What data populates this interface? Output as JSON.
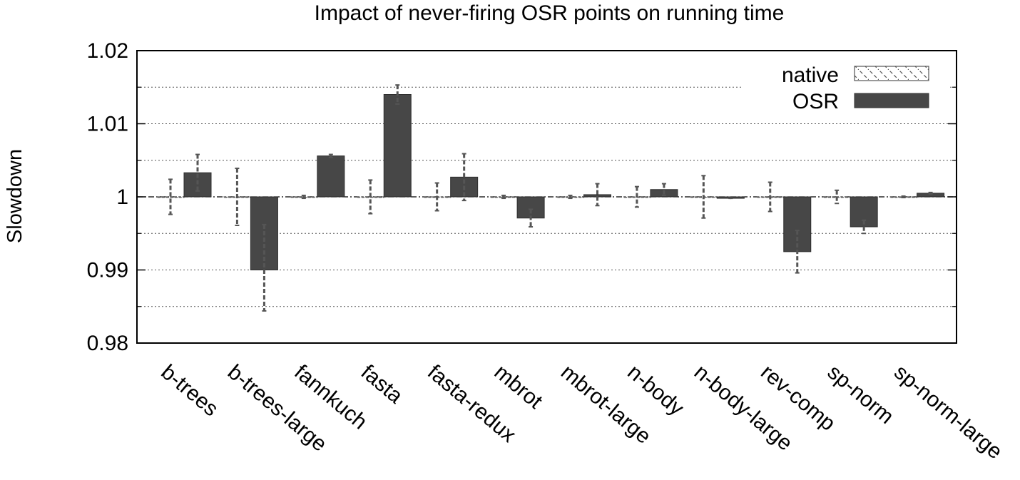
{
  "chart_data": {
    "type": "bar",
    "title": "Impact of never-firing OSR points on running time",
    "xlabel": "",
    "ylabel": "Slowdown",
    "ylim": [
      0.98,
      1.02
    ],
    "yticks": [
      "0.98",
      "0.99",
      "1",
      "1.01",
      "1.02"
    ],
    "grid": true,
    "legend_position": "top-right",
    "categories": [
      "b-trees",
      "b-trees-large",
      "fannkuch",
      "fasta",
      "fasta-redux",
      "mbrot",
      "mbrot-large",
      "n-body",
      "n-body-large",
      "rev-comp",
      "sp-norm",
      "sp-norm-large"
    ],
    "series": [
      {
        "name": "native",
        "pattern": "hatched",
        "color": "#555555",
        "values": [
          1,
          1,
          1,
          1,
          1,
          1,
          1,
          1,
          1,
          1,
          1,
          1
        ],
        "error_low": [
          0.9976,
          0.9961,
          0.9998,
          0.9977,
          0.9981,
          0.9998,
          0.9998,
          0.9986,
          0.9971,
          0.998,
          0.9991,
          0.9999
        ],
        "error_high": [
          1.0024,
          1.0039,
          1.0002,
          1.0023,
          1.0019,
          1.0002,
          1.0002,
          1.0014,
          1.0029,
          1.002,
          1.0009,
          1.0001
        ]
      },
      {
        "name": "OSR",
        "pattern": "solid",
        "color": "#474747",
        "values": [
          1.0033,
          0.99,
          1.0056,
          1.014,
          1.0027,
          0.9971,
          1.0003,
          1.001,
          0.9998,
          0.9925,
          0.9959,
          1.0005
        ],
        "error_low": [
          1.0008,
          0.9844,
          1.0054,
          1.0127,
          0.9995,
          0.9959,
          0.9988,
          1.0002,
          0.9998,
          0.9896,
          0.995,
          1.0004
        ],
        "error_high": [
          1.0058,
          0.9962,
          1.0058,
          1.0153,
          1.0059,
          0.9983,
          1.0018,
          1.0018,
          0.9998,
          0.9954,
          0.9968,
          1.0006
        ]
      }
    ]
  }
}
